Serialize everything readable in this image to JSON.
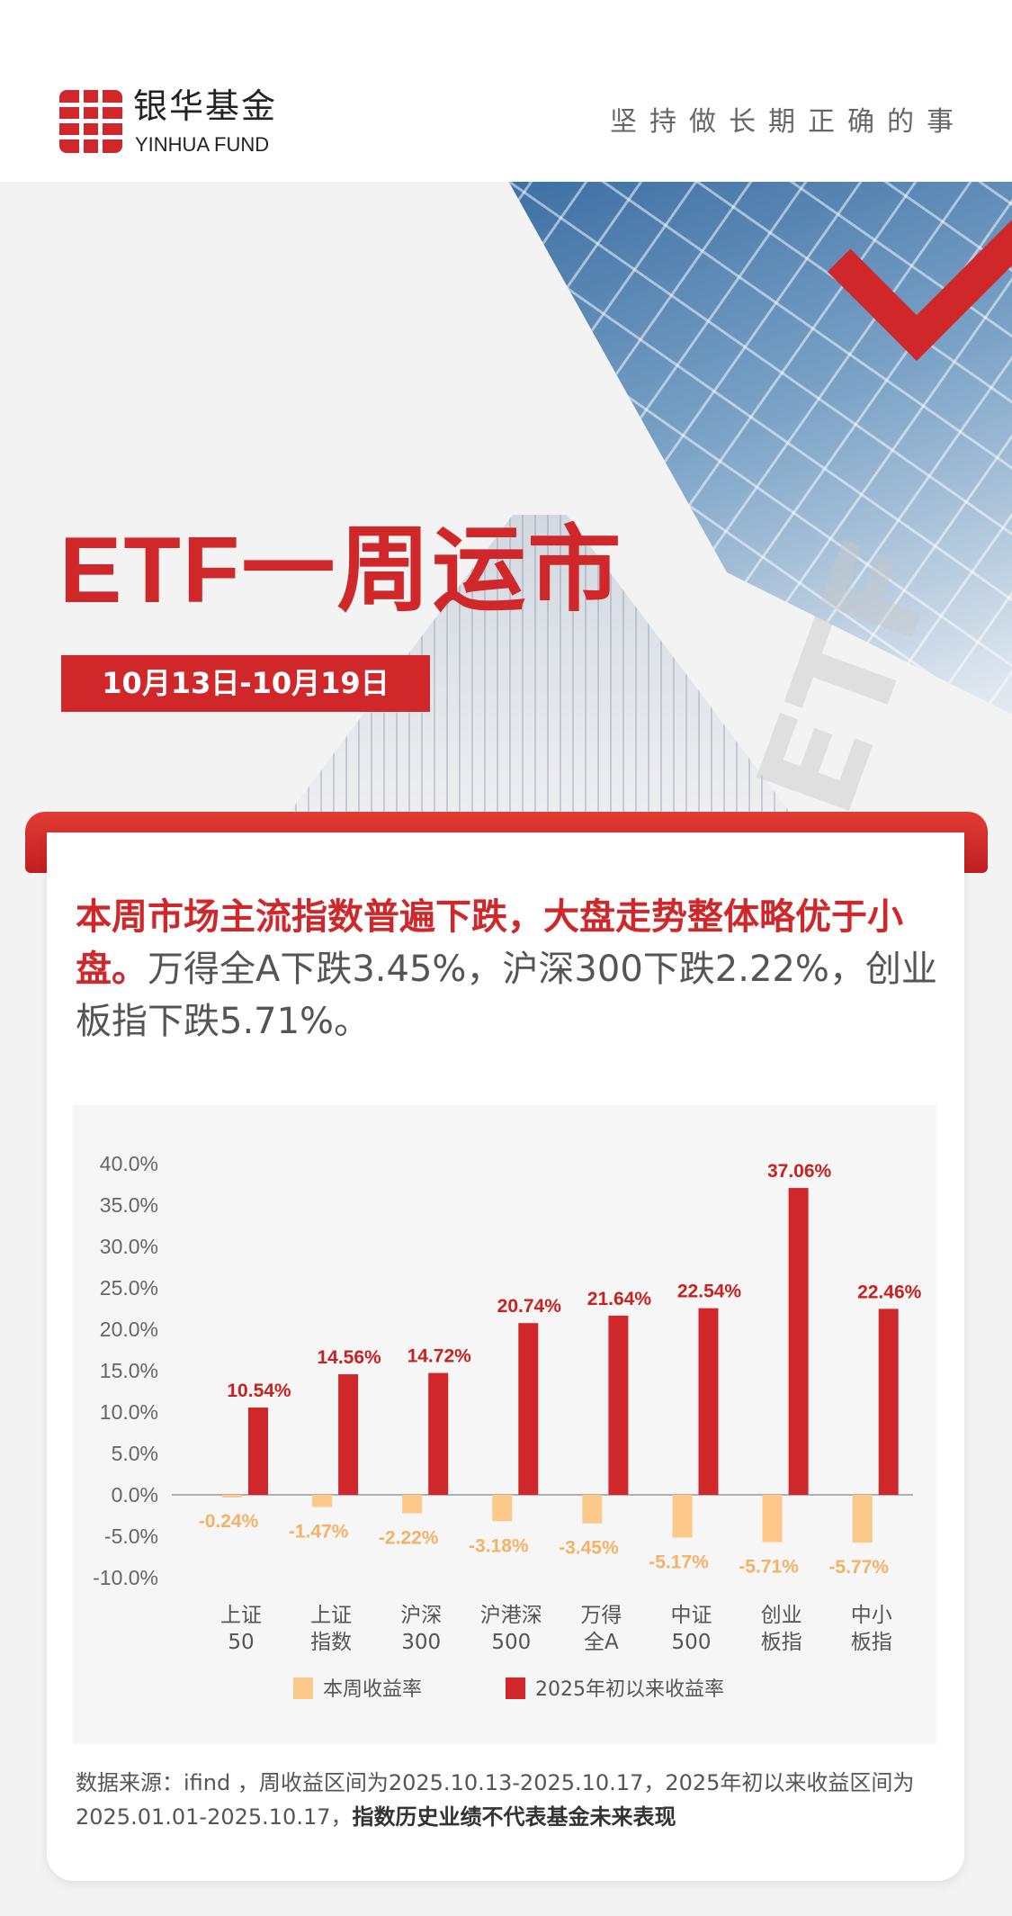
{
  "header": {
    "logo_cn": "银华基金",
    "logo_en": "YINHUA FUND",
    "slogan": "坚持做长期正确的事"
  },
  "hero": {
    "title": "ETF一周运市",
    "date_range": "10月13日-10月19日",
    "watermark": "ETF"
  },
  "intro": {
    "highlight": "本周市场主流指数普遍下跌，大盘走势整体略优于小盘。",
    "rest": "万得全A下跌3.45%，沪深300下跌2.22%，创业板指下跌5.71%。"
  },
  "colors": {
    "accent": "#d0282a",
    "weekly": "#fcc98a",
    "ytd": "#d0282a"
  },
  "chart_data": {
    "type": "bar",
    "categories": [
      [
        "上证",
        "50"
      ],
      [
        "上证",
        "指数"
      ],
      [
        "沪深",
        "300"
      ],
      [
        "沪港深",
        "500"
      ],
      [
        "万得",
        "全A"
      ],
      [
        "中证",
        "500"
      ],
      [
        "创业",
        "板指"
      ],
      [
        "中小",
        "板指"
      ]
    ],
    "series": [
      {
        "name": "本周收益率",
        "values": [
          -0.24,
          -1.47,
          -2.22,
          -3.18,
          -3.45,
          -5.17,
          -5.71,
          -5.77
        ],
        "labels": [
          "-0.24%",
          "-1.47%",
          "-2.22%",
          "-3.18%",
          "-3.45%",
          "-5.17%",
          "-5.71%",
          "-5.77%"
        ]
      },
      {
        "name": "2025年初以来收益率",
        "values": [
          10.54,
          14.56,
          14.72,
          20.74,
          21.64,
          22.54,
          37.06,
          22.46
        ],
        "labels": [
          "10.54%",
          "14.56%",
          "14.72%",
          "20.74%",
          "21.64%",
          "22.54%",
          "37.06%",
          "22.46%"
        ]
      }
    ],
    "yticks": [
      "40.0%",
      "35.0%",
      "30.0%",
      "25.0%",
      "20.0%",
      "15.0%",
      "10.0%",
      "5.0%",
      "0.0%",
      "-5.0%",
      "-10.0%"
    ],
    "ylim": [
      -10,
      40
    ],
    "legend": "bottom",
    "grid": false
  },
  "footer": {
    "source": "数据来源：ifind ，周收益区间为2025.10.13-2025.10.17，2025年初以来收益区间为2025.01.01-2025.10.17，",
    "disclaimer": "指数历史业绩不代表基金未来表现"
  }
}
